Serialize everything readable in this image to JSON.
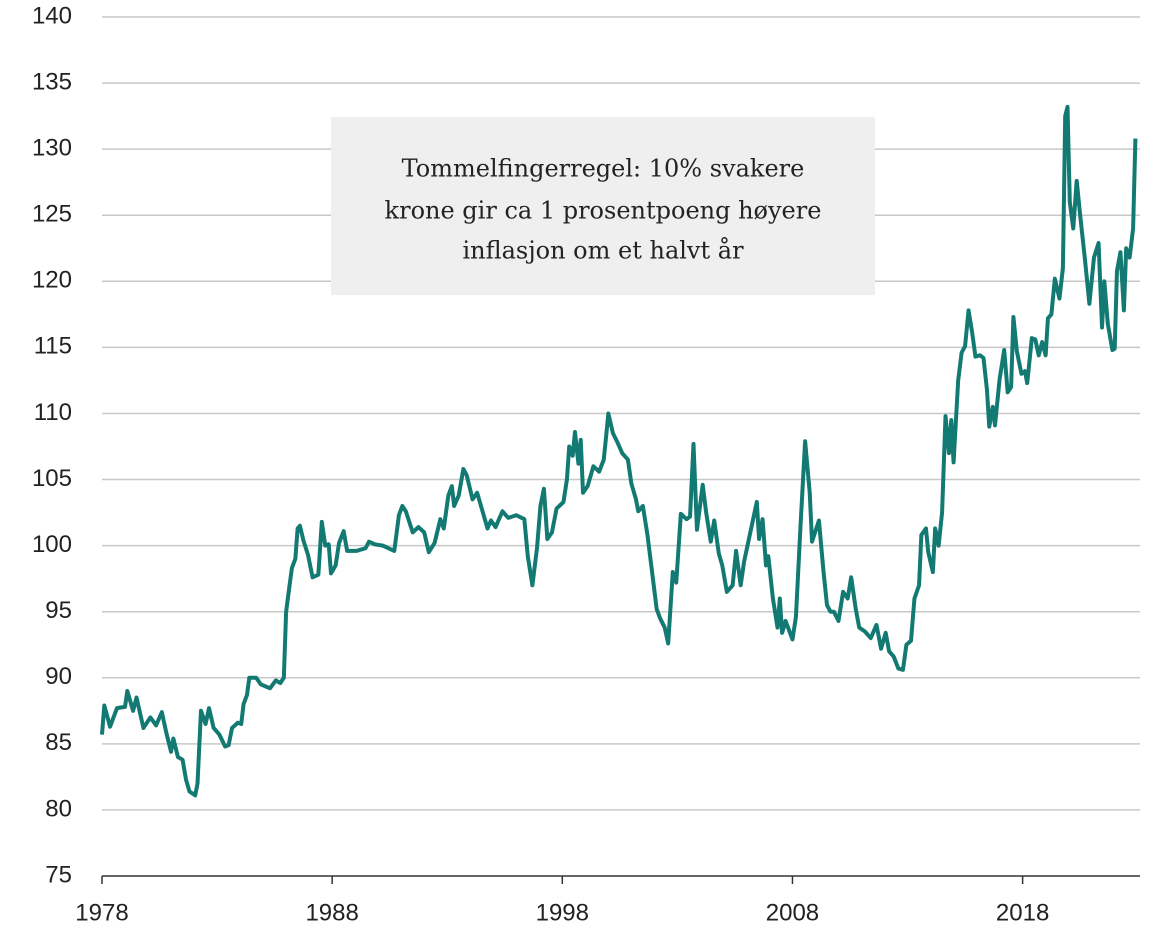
{
  "chart_data": {
    "type": "line",
    "annotation": [
      "Tommelfingerregel: 10% svakere",
      "krone gir ca 1 prosentpoeng høyere",
      "inflasjon om et halvt år"
    ],
    "xlim": [
      1978,
      2023.1
    ],
    "xticks": [
      1978,
      1988,
      1998,
      2008,
      2018
    ],
    "ylim": [
      75,
      140
    ],
    "yticks": [
      75,
      80,
      85,
      90,
      95,
      100,
      105,
      110,
      115,
      120,
      125,
      130,
      135,
      140
    ],
    "grid": true,
    "x": [
      1978.0,
      1978.1,
      1978.35,
      1978.65,
      1979.0,
      1979.1,
      1979.35,
      1979.5,
      1979.8,
      1980.1,
      1980.35,
      1980.6,
      1980.8,
      1981.0,
      1981.1,
      1981.3,
      1981.5,
      1981.65,
      1981.8,
      1982.05,
      1982.15,
      1982.3,
      1982.5,
      1982.65,
      1982.85,
      1983.1,
      1983.35,
      1983.5,
      1983.65,
      1983.9,
      1984.05,
      1984.15,
      1984.3,
      1984.4,
      1984.7,
      1984.9,
      1985.3,
      1985.55,
      1985.75,
      1985.9,
      1986.0,
      1986.15,
      1986.25,
      1986.4,
      1986.5,
      1986.6,
      1986.75,
      1986.95,
      1987.15,
      1987.4,
      1987.55,
      1987.7,
      1987.85,
      1987.95,
      1988.15,
      1988.3,
      1988.5,
      1988.65,
      1989.05,
      1989.45,
      1989.6,
      1989.85,
      1990.2,
      1990.7,
      1990.9,
      1991.05,
      1991.2,
      1991.5,
      1991.75,
      1992.0,
      1992.2,
      1992.45,
      1992.7,
      1992.85,
      1993.05,
      1993.2,
      1993.3,
      1993.5,
      1993.7,
      1993.85,
      1994.1,
      1994.3,
      1994.55,
      1994.75,
      1994.9,
      1995.1,
      1995.4,
      1995.65,
      1996.0,
      1996.35,
      1996.5,
      1996.7,
      1996.9,
      1997.05,
      1997.2,
      1997.35,
      1997.55,
      1997.75,
      1998.05,
      1998.2,
      1998.3,
      1998.45,
      1998.55,
      1998.7,
      1998.8,
      1998.9,
      1999.1,
      1999.35,
      1999.6,
      1999.8,
      1999.9,
      2000.0,
      2000.2,
      2000.4,
      2000.6,
      2000.85,
      2001.0,
      2001.2,
      2001.3,
      2001.5,
      2001.7,
      2001.9,
      2002.1,
      2002.25,
      2002.45,
      2002.6,
      2002.8,
      2002.95,
      2003.15,
      2003.4,
      2003.55,
      2003.7,
      2003.85,
      2004.1,
      2004.25,
      2004.45,
      2004.6,
      2004.8,
      2004.95,
      2005.15,
      2005.4,
      2005.55,
      2005.75,
      2005.9,
      2006.45,
      2006.55,
      2006.7,
      2006.85,
      2006.95,
      2007.15,
      2007.35,
      2007.45,
      2007.55,
      2007.7,
      2008.0,
      2008.15,
      2008.35,
      2008.55,
      2008.75,
      2008.85,
      2009.15,
      2009.35,
      2009.5,
      2009.65,
      2009.8,
      2010.0,
      2010.2,
      2010.4,
      2010.55,
      2010.75,
      2010.9,
      2011.15,
      2011.4,
      2011.65,
      2011.85,
      2012.05,
      2012.2,
      2012.4,
      2012.6,
      2012.8,
      2012.95,
      2013.15,
      2013.3,
      2013.5,
      2013.6,
      2013.8,
      2013.9,
      2014.1,
      2014.2,
      2014.35,
      2014.5,
      2014.65,
      2014.8,
      2014.9,
      2015.0,
      2015.2,
      2015.35,
      2015.5,
      2015.65,
      2015.8,
      2015.95,
      2016.15,
      2016.3,
      2016.45,
      2016.55,
      2016.7,
      2016.8,
      2017.0,
      2017.2,
      2017.35,
      2017.5,
      2017.6,
      2017.75,
      2017.95,
      2018.1,
      2018.2,
      2018.4,
      2018.55,
      2018.7,
      2018.85,
      2019.0,
      2019.1,
      2019.25,
      2019.4,
      2019.6,
      2019.75,
      2019.85,
      2019.95,
      2020.05,
      2020.2,
      2020.35,
      2020.5,
      2020.7,
      2020.9,
      2021.1,
      2021.3,
      2021.45,
      2021.55,
      2021.7,
      2021.9,
      2022.0,
      2022.1,
      2022.25,
      2022.4,
      2022.5,
      2022.65,
      2022.8,
      2022.9
    ],
    "series": [
      {
        "color": "#127a72",
        "values": [
          85.7,
          87.9,
          86.3,
          87.7,
          87.8,
          89.0,
          87.5,
          88.5,
          86.2,
          87.0,
          86.4,
          87.4,
          85.8,
          84.4,
          85.4,
          84.0,
          83.8,
          82.3,
          81.4,
          81.1,
          82.0,
          87.5,
          86.5,
          87.7,
          86.2,
          85.7,
          84.8,
          84.9,
          86.2,
          86.6,
          86.5,
          88.0,
          88.7,
          90.0,
          90.0,
          89.5,
          89.2,
          89.8,
          89.6,
          90.0,
          95.0,
          97.0,
          98.3,
          99.0,
          101.3,
          101.5,
          100.4,
          99.3,
          97.6,
          97.8,
          101.8,
          100.0,
          100.1,
          97.9,
          98.5,
          100.2,
          101.1,
          99.6,
          99.6,
          99.8,
          100.3,
          100.1,
          100.0,
          99.6,
          102.3,
          103.0,
          102.6,
          101.0,
          101.4,
          101.0,
          99.5,
          100.2,
          102.0,
          101.3,
          103.8,
          104.5,
          103.0,
          103.8,
          105.8,
          105.3,
          103.5,
          104.0,
          102.5,
          101.3,
          101.9,
          101.4,
          102.6,
          102.1,
          102.3,
          102.0,
          99.2,
          97.0,
          99.8,
          103.0,
          104.3,
          100.5,
          101.0,
          102.8,
          103.3,
          105.0,
          107.5,
          106.8,
          108.6,
          106.2,
          108.0,
          104.0,
          104.5,
          106.0,
          105.6,
          106.5,
          108.2,
          110.0,
          108.5,
          107.8,
          107.0,
          106.5,
          104.7,
          103.5,
          102.6,
          103.0,
          100.8,
          98.0,
          95.2,
          94.5,
          93.8,
          92.6,
          98.0,
          97.2,
          102.4,
          102.0,
          102.2,
          107.7,
          101.2,
          104.6,
          102.5,
          100.3,
          101.9,
          99.4,
          98.5,
          96.5,
          97.0,
          99.6,
          97.0,
          98.8,
          103.3,
          100.5,
          102.0,
          98.5,
          99.2,
          96.0,
          93.8,
          96.0,
          93.4,
          94.3,
          92.9,
          94.6,
          101.5,
          107.9,
          104.0,
          100.3,
          101.9,
          98.0,
          95.5,
          95.0,
          95.0,
          94.3,
          96.5,
          96.0,
          97.6,
          95.2,
          93.8,
          93.5,
          93.0,
          94.0,
          92.2,
          93.4,
          92.0,
          91.6,
          90.7,
          90.6,
          92.5,
          92.8,
          96.0,
          97.0,
          100.8,
          101.3,
          99.5,
          98.0,
          101.3,
          100.0,
          102.5,
          109.8,
          107.0,
          109.5,
          106.3,
          112.5,
          114.6,
          115.1,
          117.8,
          116.2,
          114.3,
          114.4,
          114.2,
          111.8,
          109.0,
          110.5,
          109.1,
          112.6,
          114.8,
          111.6,
          112.0,
          117.3,
          114.7,
          113.0,
          113.2,
          112.3,
          115.7,
          115.6,
          114.4,
          115.4,
          114.4,
          117.2,
          117.5,
          120.2,
          118.7,
          121.0,
          132.5,
          133.2,
          126.0,
          124.0,
          127.6,
          125.0,
          121.8,
          118.3,
          121.8,
          122.9,
          116.5,
          120.0,
          116.8,
          114.8,
          114.9,
          120.8,
          122.2,
          117.8,
          122.5,
          121.8,
          124.0,
          130.8
        ]
      }
    ]
  }
}
